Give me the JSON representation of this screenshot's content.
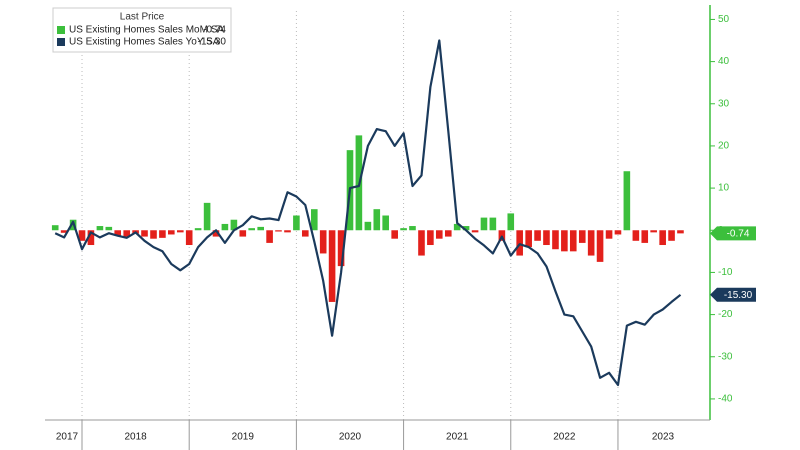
{
  "chart_data": {
    "type": "bar-line",
    "legend_title": "Last Price",
    "x": [
      2017.75,
      2017.833,
      2017.917,
      2018.0,
      2018.083,
      2018.167,
      2018.25,
      2018.333,
      2018.417,
      2018.5,
      2018.583,
      2018.667,
      2018.75,
      2018.833,
      2018.917,
      2019.0,
      2019.083,
      2019.167,
      2019.25,
      2019.333,
      2019.417,
      2019.5,
      2019.583,
      2019.667,
      2019.75,
      2019.833,
      2019.917,
      2020.0,
      2020.083,
      2020.167,
      2020.25,
      2020.333,
      2020.417,
      2020.5,
      2020.583,
      2020.667,
      2020.75,
      2020.833,
      2020.917,
      2021.0,
      2021.083,
      2021.167,
      2021.25,
      2021.333,
      2021.417,
      2021.5,
      2021.583,
      2021.667,
      2021.75,
      2021.833,
      2021.917,
      2022.0,
      2022.083,
      2022.167,
      2022.25,
      2022.333,
      2022.417,
      2022.5,
      2022.583,
      2022.667,
      2022.75,
      2022.833,
      2022.917,
      2023.0,
      2023.083,
      2023.167,
      2023.25,
      2023.333,
      2023.417,
      2023.5,
      2023.583
    ],
    "series": [
      {
        "name": "US Existing Homes Sales MoM SA",
        "kind": "bar",
        "last_label": "-0.74",
        "color": "#3cbf3c",
        "negative_color": "#e3201b",
        "values": [
          1.2,
          -0.6,
          2.5,
          -2.5,
          -3.5,
          1.0,
          0.8,
          -1.3,
          -1.5,
          -0.8,
          -1.5,
          -2.0,
          -1.8,
          -1.0,
          -0.5,
          -3.5,
          0.5,
          6.5,
          -1.5,
          1.5,
          2.5,
          -1.5,
          0.5,
          0.8,
          -3.0,
          -0.3,
          -0.5,
          3.5,
          -1.5,
          5.0,
          -5.5,
          -17,
          -8.5,
          19,
          22.5,
          2,
          5,
          3.5,
          -2,
          0.5,
          1,
          -6,
          -3.5,
          -2,
          -1.5,
          1.5,
          1,
          -0.5,
          3,
          3,
          -2.5,
          4,
          -6,
          -4,
          -2.5,
          -3.5,
          -4.5,
          -5,
          -5,
          -3,
          -6,
          -7.5,
          -2,
          -1,
          14,
          -2.5,
          -3,
          -0.5,
          -3.5,
          -2.5,
          -0.74
        ]
      },
      {
        "name": "US Existing Homes Sales YoY SA",
        "kind": "line",
        "last_label": "-15.30",
        "color": "#1b3a5c",
        "values": [
          -0.7,
          -1.7,
          2.0,
          -4.5,
          -0.5,
          -1.7,
          -0.7,
          -1.3,
          -1.8,
          -0.5,
          -2.5,
          -4,
          -5,
          -8,
          -9.5,
          -8,
          -4,
          -1.7,
          0,
          -3,
          0,
          1.2,
          3.3,
          2.6,
          2.8,
          2.4,
          9,
          8,
          6,
          -2.7,
          -12,
          -25,
          -10,
          10,
          10.5,
          20,
          24,
          23.5,
          20,
          23,
          10.5,
          13,
          34,
          45,
          23.5,
          1.7,
          0,
          -2,
          -3.6,
          -5.5,
          -1.5,
          -6,
          -3.3,
          -4,
          -5.5,
          -8.6,
          -14.5,
          -20,
          -20.4,
          -24,
          -27.6,
          -35,
          -33.8,
          -36.7,
          -22.6,
          -21.7,
          -22.4,
          -20,
          -18.8,
          -17,
          -15.3
        ]
      }
    ],
    "xlim": [
      2017.72,
      2023.84
    ],
    "xticks": [
      2017,
      2018,
      2019,
      2020,
      2021,
      2022,
      2023
    ],
    "ylim": [
      -45,
      52
    ],
    "yticks": [
      50,
      40,
      30,
      20,
      10,
      0,
      -10,
      -20,
      -30,
      -40
    ],
    "axis_color": "#3cbf3c",
    "grid": true
  }
}
